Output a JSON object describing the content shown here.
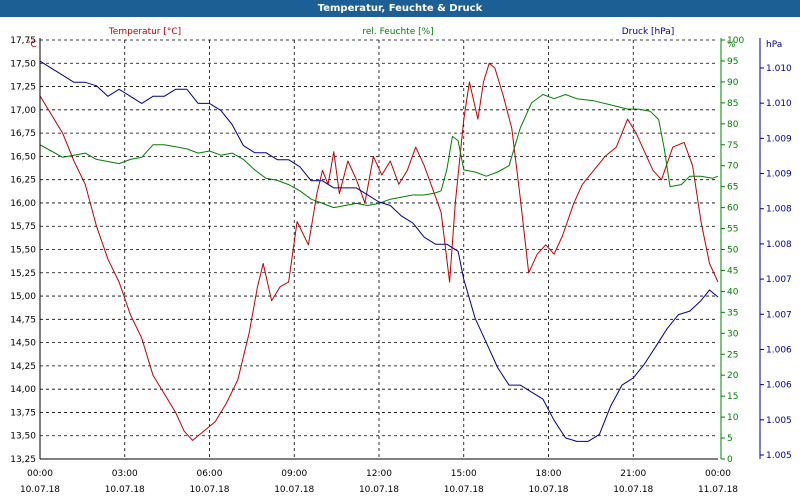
{
  "window": {
    "title": "Temperatur, Feuchte & Druck"
  },
  "chart_data": {
    "type": "line",
    "grid": true,
    "x_ticks": [
      {
        "time": "00:00",
        "date": "10.07.18"
      },
      {
        "time": "03:00",
        "date": "10.07.18"
      },
      {
        "time": "06:00",
        "date": "10.07.18"
      },
      {
        "time": "09:00",
        "date": "10.07.18"
      },
      {
        "time": "12:00",
        "date": "10.07.18"
      },
      {
        "time": "15:00",
        "date": "10.07.18"
      },
      {
        "time": "18:00",
        "date": "10.07.18"
      },
      {
        "time": "21:00",
        "date": "10.07.18"
      },
      {
        "time": "00:00",
        "date": "11.07.18"
      }
    ],
    "x_range_hours": [
      0,
      24
    ],
    "axes": {
      "temperature": {
        "unit": "°C",
        "legend": "Temperatur [°C]",
        "color": "#c00000",
        "range": [
          13.25,
          17.75
        ],
        "ticks": [
          "13,25",
          "13,50",
          "13,75",
          "14,00",
          "14,25",
          "14,50",
          "14,75",
          "15,00",
          "15,25",
          "15,50",
          "15,75",
          "16,00",
          "16,25",
          "16,50",
          "16,75",
          "17,00",
          "17,25",
          "17,50",
          "17,75"
        ]
      },
      "humidity": {
        "unit": "%",
        "legend": "rel. Feuchte [%]",
        "color": "#008000",
        "range": [
          0,
          100
        ],
        "ticks": [
          "0",
          "5",
          "10",
          "15",
          "20",
          "25",
          "30",
          "35",
          "40",
          "45",
          "50",
          "55",
          "60",
          "65",
          "70",
          "75",
          "80",
          "85",
          "90",
          "95",
          "100"
        ]
      },
      "pressure": {
        "unit": "hPa",
        "legend": "Druck [hPa]",
        "color": "#000090",
        "range": [
          1004.9,
          1010.85
        ],
        "ticks": [
          "1.005",
          "1.005",
          "1.006",
          "1.006",
          "1.007",
          "1.007",
          "1.008",
          "1.008",
          "1.009",
          "1.009",
          "1.010",
          "1.010"
        ]
      }
    },
    "series": [
      {
        "name": "Temperatur [°C]",
        "axis": "temperature",
        "points": [
          [
            0.0,
            17.15
          ],
          [
            0.4,
            16.95
          ],
          [
            0.8,
            16.75
          ],
          [
            1.2,
            16.45
          ],
          [
            1.6,
            16.2
          ],
          [
            2.0,
            15.75
          ],
          [
            2.4,
            15.4
          ],
          [
            2.8,
            15.15
          ],
          [
            3.2,
            14.8
          ],
          [
            3.6,
            14.55
          ],
          [
            4.0,
            14.15
          ],
          [
            4.4,
            13.95
          ],
          [
            4.8,
            13.75
          ],
          [
            5.1,
            13.55
          ],
          [
            5.4,
            13.45
          ],
          [
            5.8,
            13.55
          ],
          [
            6.2,
            13.65
          ],
          [
            6.6,
            13.85
          ],
          [
            7.0,
            14.1
          ],
          [
            7.4,
            14.6
          ],
          [
            7.7,
            15.1
          ],
          [
            7.9,
            15.35
          ],
          [
            8.2,
            14.95
          ],
          [
            8.5,
            15.1
          ],
          [
            8.8,
            15.15
          ],
          [
            9.1,
            15.8
          ],
          [
            9.5,
            15.55
          ],
          [
            9.8,
            16.1
          ],
          [
            10.0,
            16.35
          ],
          [
            10.2,
            16.2
          ],
          [
            10.4,
            16.55
          ],
          [
            10.6,
            16.1
          ],
          [
            10.9,
            16.45
          ],
          [
            11.2,
            16.25
          ],
          [
            11.5,
            16.0
          ],
          [
            11.8,
            16.5
          ],
          [
            12.1,
            16.3
          ],
          [
            12.4,
            16.45
          ],
          [
            12.7,
            16.2
          ],
          [
            13.0,
            16.35
          ],
          [
            13.3,
            16.6
          ],
          [
            13.6,
            16.4
          ],
          [
            13.9,
            16.15
          ],
          [
            14.2,
            15.9
          ],
          [
            14.5,
            15.15
          ],
          [
            14.7,
            16.0
          ],
          [
            15.0,
            16.9
          ],
          [
            15.2,
            17.3
          ],
          [
            15.5,
            16.9
          ],
          [
            15.7,
            17.3
          ],
          [
            15.9,
            17.5
          ],
          [
            16.1,
            17.45
          ],
          [
            16.4,
            17.15
          ],
          [
            16.7,
            16.8
          ],
          [
            17.0,
            16.05
          ],
          [
            17.3,
            15.25
          ],
          [
            17.6,
            15.45
          ],
          [
            17.9,
            15.55
          ],
          [
            18.2,
            15.45
          ],
          [
            18.5,
            15.65
          ],
          [
            18.9,
            16.0
          ],
          [
            19.2,
            16.2
          ],
          [
            19.6,
            16.35
          ],
          [
            20.0,
            16.5
          ],
          [
            20.4,
            16.6
          ],
          [
            20.8,
            16.9
          ],
          [
            21.1,
            16.75
          ],
          [
            21.4,
            16.55
          ],
          [
            21.7,
            16.35
          ],
          [
            22.0,
            16.25
          ],
          [
            22.4,
            16.6
          ],
          [
            22.8,
            16.65
          ],
          [
            23.1,
            16.4
          ],
          [
            23.4,
            15.8
          ],
          [
            23.7,
            15.35
          ],
          [
            24.0,
            15.15
          ]
        ]
      },
      {
        "name": "rel. Feuchte [%]",
        "axis": "humidity",
        "points": [
          [
            0.0,
            75
          ],
          [
            0.4,
            73.5
          ],
          [
            0.8,
            72
          ],
          [
            1.2,
            72.5
          ],
          [
            1.6,
            73
          ],
          [
            2.0,
            71.5
          ],
          [
            2.4,
            71
          ],
          [
            2.8,
            70.5
          ],
          [
            3.2,
            71.5
          ],
          [
            3.6,
            72
          ],
          [
            4.0,
            75
          ],
          [
            4.4,
            75
          ],
          [
            4.8,
            74.5
          ],
          [
            5.2,
            74
          ],
          [
            5.6,
            73
          ],
          [
            6.0,
            73.5
          ],
          [
            6.4,
            72.5
          ],
          [
            6.8,
            73
          ],
          [
            7.2,
            71.5
          ],
          [
            7.6,
            69
          ],
          [
            8.0,
            67
          ],
          [
            8.4,
            66.5
          ],
          [
            8.8,
            65.5
          ],
          [
            9.2,
            64
          ],
          [
            9.6,
            62
          ],
          [
            10.0,
            61
          ],
          [
            10.4,
            60
          ],
          [
            10.8,
            60.5
          ],
          [
            11.2,
            61
          ],
          [
            11.6,
            60.5
          ],
          [
            12.0,
            61
          ],
          [
            12.4,
            62
          ],
          [
            12.8,
            62.5
          ],
          [
            13.2,
            63
          ],
          [
            13.6,
            63
          ],
          [
            14.0,
            63.5
          ],
          [
            14.2,
            64
          ],
          [
            14.4,
            69
          ],
          [
            14.6,
            77
          ],
          [
            14.8,
            76
          ],
          [
            15.0,
            69
          ],
          [
            15.4,
            68.5
          ],
          [
            15.8,
            67.5
          ],
          [
            16.2,
            68.5
          ],
          [
            16.6,
            70
          ],
          [
            17.0,
            79
          ],
          [
            17.4,
            85
          ],
          [
            17.8,
            87
          ],
          [
            18.2,
            86
          ],
          [
            18.6,
            87
          ],
          [
            19.0,
            86
          ],
          [
            19.6,
            85.5
          ],
          [
            20.2,
            84.5
          ],
          [
            20.8,
            83.5
          ],
          [
            21.2,
            83.5
          ],
          [
            21.6,
            83
          ],
          [
            21.9,
            81
          ],
          [
            22.1,
            74
          ],
          [
            22.3,
            65
          ],
          [
            22.7,
            65.5
          ],
          [
            23.0,
            67.5
          ],
          [
            23.4,
            67.5
          ],
          [
            23.8,
            67
          ],
          [
            24.0,
            67.5
          ]
        ]
      },
      {
        "name": "Druck [hPa]",
        "axis": "pressure",
        "points": [
          [
            0.0,
            1010.55
          ],
          [
            0.4,
            1010.45
          ],
          [
            0.8,
            1010.35
          ],
          [
            1.2,
            1010.25
          ],
          [
            1.6,
            1010.25
          ],
          [
            2.0,
            1010.2
          ],
          [
            2.4,
            1010.05
          ],
          [
            2.8,
            1010.15
          ],
          [
            3.2,
            1010.05
          ],
          [
            3.6,
            1009.95
          ],
          [
            4.0,
            1010.05
          ],
          [
            4.4,
            1010.05
          ],
          [
            4.8,
            1010.15
          ],
          [
            5.2,
            1010.15
          ],
          [
            5.6,
            1009.95
          ],
          [
            6.0,
            1009.95
          ],
          [
            6.4,
            1009.85
          ],
          [
            6.8,
            1009.65
          ],
          [
            7.2,
            1009.35
          ],
          [
            7.6,
            1009.25
          ],
          [
            8.0,
            1009.25
          ],
          [
            8.4,
            1009.15
          ],
          [
            8.8,
            1009.15
          ],
          [
            9.2,
            1009.05
          ],
          [
            9.6,
            1008.85
          ],
          [
            10.0,
            1008.85
          ],
          [
            10.4,
            1008.75
          ],
          [
            10.8,
            1008.75
          ],
          [
            11.2,
            1008.75
          ],
          [
            11.6,
            1008.65
          ],
          [
            12.0,
            1008.55
          ],
          [
            12.4,
            1008.5
          ],
          [
            12.8,
            1008.35
          ],
          [
            13.2,
            1008.25
          ],
          [
            13.6,
            1008.05
          ],
          [
            14.0,
            1007.95
          ],
          [
            14.4,
            1007.95
          ],
          [
            14.8,
            1007.85
          ],
          [
            15.0,
            1007.45
          ],
          [
            15.4,
            1006.9
          ],
          [
            15.8,
            1006.55
          ],
          [
            16.2,
            1006.2
          ],
          [
            16.6,
            1005.95
          ],
          [
            17.0,
            1005.95
          ],
          [
            17.4,
            1005.85
          ],
          [
            17.8,
            1005.75
          ],
          [
            18.2,
            1005.45
          ],
          [
            18.6,
            1005.2
          ],
          [
            19.0,
            1005.15
          ],
          [
            19.4,
            1005.15
          ],
          [
            19.8,
            1005.25
          ],
          [
            20.2,
            1005.65
          ],
          [
            20.6,
            1005.95
          ],
          [
            21.0,
            1006.05
          ],
          [
            21.4,
            1006.25
          ],
          [
            21.8,
            1006.5
          ],
          [
            22.2,
            1006.75
          ],
          [
            22.6,
            1006.95
          ],
          [
            23.0,
            1007.0
          ],
          [
            23.4,
            1007.15
          ],
          [
            23.7,
            1007.3
          ],
          [
            24.0,
            1007.2
          ]
        ]
      }
    ]
  }
}
